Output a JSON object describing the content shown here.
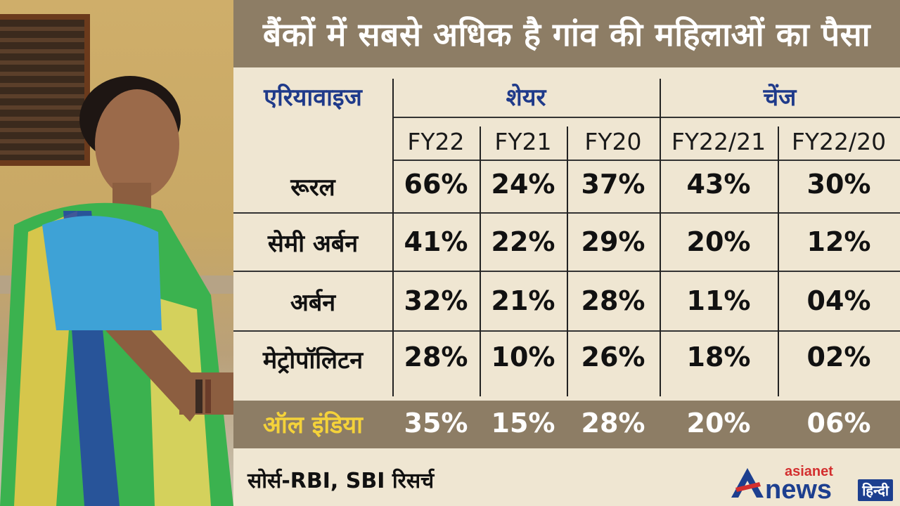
{
  "title": "बैंकों में सबसे अधिक है गांव की महिलाओं का पैसा",
  "table": {
    "area_header": "एरियावाइज",
    "share_header": "शेयर",
    "change_header": "चेंज",
    "columns": [
      "FY22",
      "FY21",
      "FY20",
      "FY22/21",
      "FY22/20"
    ],
    "rows": [
      {
        "label": "रूरल",
        "values": [
          "66%",
          "24%",
          "37%",
          "43%",
          "30%"
        ]
      },
      {
        "label": "सेमी अर्बन",
        "values": [
          "41%",
          "22%",
          "29%",
          "20%",
          "12%"
        ]
      },
      {
        "label": "अर्बन",
        "values": [
          "32%",
          "21%",
          "28%",
          "11%",
          "04%"
        ]
      },
      {
        "label": "मेट्रोपॉलिटन",
        "values": [
          "28%",
          "10%",
          "26%",
          "18%",
          "02%"
        ]
      }
    ],
    "total": {
      "label": "ऑल इंडिया",
      "values": [
        "35%",
        "15%",
        "28%",
        "20%",
        "06%"
      ]
    }
  },
  "source": "सोर्स-RBI, SBI रिसर्च",
  "brand": {
    "small": "asianet",
    "big": "news",
    "tag": "हिन्दी"
  },
  "colors": {
    "header_bg": "#8d7d65",
    "panel_bg": "#efe6d2",
    "header_text": "#1f3a8a",
    "total_label": "#f4d23a"
  }
}
